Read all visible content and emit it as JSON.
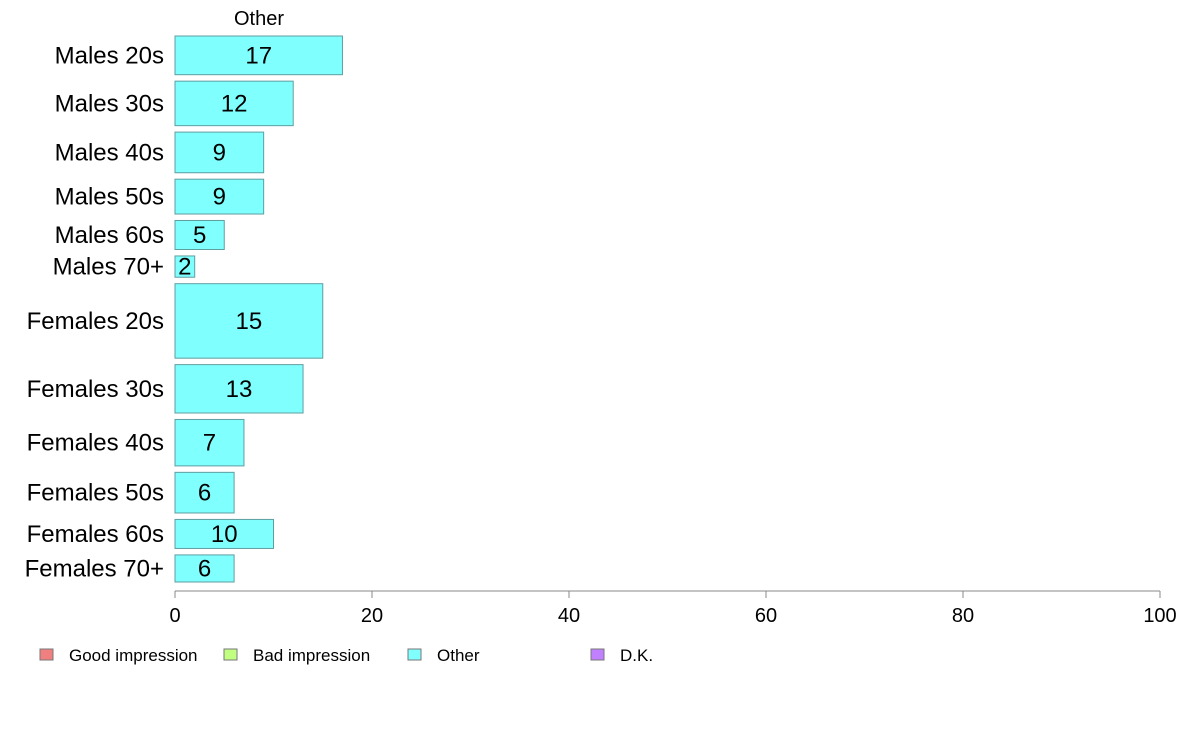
{
  "chart_data": {
    "type": "bar",
    "orientation": "horizontal",
    "title": "Other",
    "categories": [
      "Males 20s",
      "Males 30s",
      "Males 40s",
      "Males 50s",
      "Males 60s",
      "Males 70+",
      "Females 20s",
      "Females 30s",
      "Females 40s",
      "Females 50s",
      "Females 60s",
      "Females 70+"
    ],
    "values": [
      17,
      12,
      9,
      9,
      5,
      2,
      15,
      13,
      7,
      6,
      10,
      6
    ],
    "weights": [
      40,
      46,
      42,
      36,
      30,
      22,
      77,
      50,
      48,
      42,
      30,
      28
    ],
    "xlim": [
      0,
      100
    ],
    "xticks": [
      0,
      20,
      40,
      60,
      80,
      100
    ],
    "grid": false,
    "bar_color": "#80ffff",
    "bar_stroke": "#5f9ea0",
    "legend": {
      "position": "bottom",
      "entries": [
        {
          "label": "Good impression",
          "color": "#f08080"
        },
        {
          "label": "Bad impression",
          "color": "#c0ff80"
        },
        {
          "label": "Other",
          "color": "#80ffff"
        },
        {
          "label": "D.K.",
          "color": "#c080ff"
        }
      ]
    }
  }
}
